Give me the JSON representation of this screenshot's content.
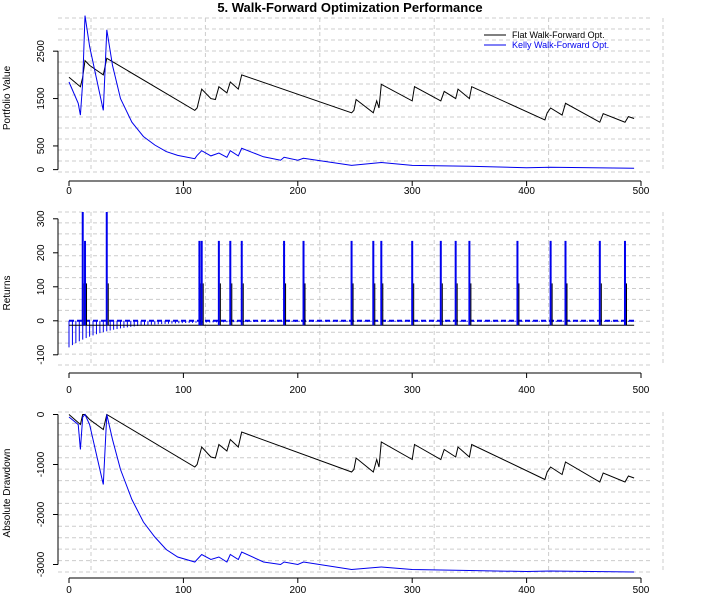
{
  "title": "5. Walk-Forward Optimization Performance",
  "colors": {
    "flat": "#000000",
    "kelly": "#0000ee",
    "grid": "#cccccc"
  },
  "legend": [
    {
      "label": "Flat Walk-Forward Opt.",
      "color": "#000000"
    },
    {
      "label": "Kelly Walk-Forward Opt.",
      "color": "#0000ee"
    }
  ],
  "chart_data": [
    {
      "type": "line",
      "name": "portfolio-value",
      "ylabel": "Portfolio Value",
      "xlabel": "",
      "xlim": [
        -2,
        500
      ],
      "ylim": [
        -50,
        3200
      ],
      "xticks": [
        "0",
        "100",
        "200",
        "300",
        "400",
        "500"
      ],
      "yticks": [
        "0",
        "500",
        "1500",
        "2500"
      ],
      "ytick_values": [
        0,
        500,
        1500,
        2500
      ],
      "legend_position": "top-right",
      "series": [
        {
          "name": "Flat Walk-Forward Opt.",
          "color": "#000000",
          "points": [
            [
              0,
              1950
            ],
            [
              10,
              1750
            ],
            [
              12,
              1950
            ],
            [
              14,
              2300
            ],
            [
              18,
              2200
            ],
            [
              30,
              2000
            ],
            [
              33,
              2350
            ],
            [
              110,
              1250
            ],
            [
              112,
              1300
            ],
            [
              116,
              1700
            ],
            [
              124,
              1500
            ],
            [
              128,
              1480
            ],
            [
              131,
              1750
            ],
            [
              138,
              1620
            ],
            [
              141,
              1850
            ],
            [
              148,
              1700
            ],
            [
              151,
              2000
            ],
            [
              247,
              1200
            ],
            [
              249,
              1250
            ],
            [
              251,
              1480
            ],
            [
              266,
              1200
            ],
            [
              269,
              1450
            ],
            [
              271,
              1300
            ],
            [
              273,
              1800
            ],
            [
              300,
              1450
            ],
            [
              302,
              1750
            ],
            [
              325,
              1450
            ],
            [
              328,
              1650
            ],
            [
              338,
              1500
            ],
            [
              340,
              1700
            ],
            [
              350,
              1500
            ],
            [
              352,
              1750
            ],
            [
              416,
              1050
            ],
            [
              418,
              1200
            ],
            [
              421,
              1300
            ],
            [
              431,
              1150
            ],
            [
              434,
              1400
            ],
            [
              464,
              1000
            ],
            [
              467,
              1180
            ],
            [
              486,
              1000
            ],
            [
              489,
              1120
            ],
            [
              494,
              1080
            ]
          ]
        },
        {
          "name": "Kelly Walk-Forward Opt.",
          "color": "#0000ee",
          "points": [
            [
              0,
              1850
            ],
            [
              8,
              1400
            ],
            [
              10,
              1150
            ],
            [
              12,
              1850
            ],
            [
              14,
              3250
            ],
            [
              18,
              2600
            ],
            [
              30,
              1250
            ],
            [
              33,
              2950
            ],
            [
              38,
              2200
            ],
            [
              45,
              1500
            ],
            [
              55,
              1000
            ],
            [
              65,
              700
            ],
            [
              75,
              520
            ],
            [
              85,
              380
            ],
            [
              95,
              300
            ],
            [
              110,
              230
            ],
            [
              112,
              300
            ],
            [
              116,
              400
            ],
            [
              124,
              290
            ],
            [
              131,
              350
            ],
            [
              138,
              260
            ],
            [
              141,
              400
            ],
            [
              148,
              290
            ],
            [
              151,
              450
            ],
            [
              170,
              270
            ],
            [
              185,
              200
            ],
            [
              188,
              260
            ],
            [
              200,
              200
            ],
            [
              205,
              240
            ],
            [
              247,
              90
            ],
            [
              273,
              150
            ],
            [
              300,
              90
            ],
            [
              350,
              70
            ],
            [
              400,
              40
            ],
            [
              421,
              50
            ],
            [
              494,
              30
            ]
          ]
        }
      ]
    },
    {
      "type": "bar",
      "name": "returns",
      "ylabel": "Returns",
      "xlabel": "",
      "xlim": [
        -2,
        500
      ],
      "ylim": [
        -130,
        320
      ],
      "xticks": [
        "0",
        "100",
        "200",
        "300",
        "400",
        "500"
      ],
      "yticks": [
        "-100",
        "0",
        "100",
        "200",
        "300"
      ],
      "ytick_values": [
        -100,
        0,
        100,
        200,
        300
      ],
      "spike_x": [
        12,
        14,
        33,
        114,
        116,
        131,
        141,
        151,
        188,
        205,
        247,
        266,
        273,
        300,
        325,
        338,
        350,
        392,
        421,
        434,
        464,
        486
      ],
      "spike_value": 235,
      "kelly_spike_value": 320,
      "flat_baseline": -13,
      "kelly_decay_start": -75,
      "kelly_decay_rate": 0.03
    },
    {
      "type": "line",
      "name": "absolute-drawdown",
      "ylabel": "Absolute Drawdown",
      "xlabel": "",
      "xlim": [
        -2,
        500
      ],
      "ylim": [
        -3150,
        50
      ],
      "xticks": [
        "0",
        "100",
        "200",
        "300",
        "400",
        "500"
      ],
      "yticks": [
        "-3000",
        "-2000",
        "-1000",
        "0"
      ],
      "ytick_values": [
        -3000,
        -2000,
        -1000,
        0
      ],
      "series": [
        {
          "name": "Flat Walk-Forward Opt.",
          "color": "#000000",
          "points": [
            [
              0,
              0
            ],
            [
              10,
              -200
            ],
            [
              12,
              0
            ],
            [
              14,
              0
            ],
            [
              18,
              -100
            ],
            [
              30,
              -300
            ],
            [
              33,
              0
            ],
            [
              110,
              -1050
            ],
            [
              112,
              -1000
            ],
            [
              116,
              -650
            ],
            [
              124,
              -850
            ],
            [
              128,
              -870
            ],
            [
              131,
              -600
            ],
            [
              138,
              -730
            ],
            [
              141,
              -500
            ],
            [
              148,
              -650
            ],
            [
              151,
              -350
            ],
            [
              247,
              -1150
            ],
            [
              249,
              -1100
            ],
            [
              251,
              -870
            ],
            [
              266,
              -1150
            ],
            [
              269,
              -900
            ],
            [
              271,
              -1050
            ],
            [
              273,
              -550
            ],
            [
              300,
              -900
            ],
            [
              302,
              -600
            ],
            [
              325,
              -900
            ],
            [
              328,
              -700
            ],
            [
              338,
              -850
            ],
            [
              340,
              -650
            ],
            [
              350,
              -850
            ],
            [
              352,
              -600
            ],
            [
              416,
              -1300
            ],
            [
              418,
              -1150
            ],
            [
              421,
              -1050
            ],
            [
              431,
              -1200
            ],
            [
              434,
              -950
            ],
            [
              464,
              -1350
            ],
            [
              467,
              -1170
            ],
            [
              486,
              -1350
            ],
            [
              489,
              -1230
            ],
            [
              494,
              -1270
            ]
          ]
        },
        {
          "name": "Kelly Walk-Forward Opt.",
          "color": "#0000ee",
          "points": [
            [
              0,
              -50
            ],
            [
              8,
              -200
            ],
            [
              10,
              -700
            ],
            [
              12,
              -50
            ],
            [
              14,
              0
            ],
            [
              18,
              -200
            ],
            [
              30,
              -1400
            ],
            [
              33,
              0
            ],
            [
              38,
              -500
            ],
            [
              45,
              -1100
            ],
            [
              55,
              -1700
            ],
            [
              65,
              -2150
            ],
            [
              75,
              -2450
            ],
            [
              85,
              -2700
            ],
            [
              95,
              -2850
            ],
            [
              110,
              -2950
            ],
            [
              112,
              -2900
            ],
            [
              116,
              -2800
            ],
            [
              124,
              -2900
            ],
            [
              131,
              -2850
            ],
            [
              138,
              -2950
            ],
            [
              141,
              -2800
            ],
            [
              148,
              -2900
            ],
            [
              151,
              -2750
            ],
            [
              170,
              -2950
            ],
            [
              185,
              -3000
            ],
            [
              188,
              -2950
            ],
            [
              200,
              -3000
            ],
            [
              205,
              -2950
            ],
            [
              247,
              -3100
            ],
            [
              273,
              -3050
            ],
            [
              300,
              -3100
            ],
            [
              350,
              -3120
            ],
            [
              400,
              -3140
            ],
            [
              421,
              -3130
            ],
            [
              494,
              -3150
            ]
          ]
        }
      ]
    }
  ]
}
